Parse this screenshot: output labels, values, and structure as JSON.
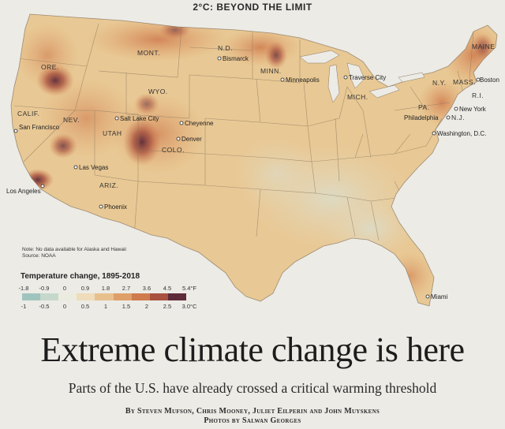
{
  "kicker": "2°C: BEYOND THE LIMIT",
  "map": {
    "states": [
      {
        "id": "ore",
        "label": "ORE."
      },
      {
        "id": "calif",
        "label": "CALIF."
      },
      {
        "id": "nev",
        "label": "NEV."
      },
      {
        "id": "utah",
        "label": "UTAH"
      },
      {
        "id": "ariz",
        "label": "ARIZ."
      },
      {
        "id": "mont",
        "label": "MONT."
      },
      {
        "id": "wyo",
        "label": "WYO."
      },
      {
        "id": "colo",
        "label": "COLO."
      },
      {
        "id": "nd",
        "label": "N.D."
      },
      {
        "id": "minn",
        "label": "MINN."
      },
      {
        "id": "mich",
        "label": "MICH."
      },
      {
        "id": "pa",
        "label": "PA."
      },
      {
        "id": "ny",
        "label": "N.Y."
      },
      {
        "id": "mass",
        "label": "MASS."
      },
      {
        "id": "ri",
        "label": "R.I."
      },
      {
        "id": "nj",
        "label": "N.J."
      },
      {
        "id": "maine",
        "label": "MAINE"
      }
    ],
    "cities": [
      {
        "id": "san-francisco",
        "label": "San Francisco"
      },
      {
        "id": "los-angeles",
        "label": "Los Angeles"
      },
      {
        "id": "las-vegas",
        "label": "Las Vegas"
      },
      {
        "id": "phoenix",
        "label": "Phoenix"
      },
      {
        "id": "salt-lake-city",
        "label": "Salt Lake City"
      },
      {
        "id": "cheyenne",
        "label": "Cheyenne"
      },
      {
        "id": "denver",
        "label": "Denver"
      },
      {
        "id": "bismarck",
        "label": "Bismarck"
      },
      {
        "id": "minneapolis",
        "label": "Minneapolis"
      },
      {
        "id": "traverse-city",
        "label": "Traverse City"
      },
      {
        "id": "boston",
        "label": "Boston"
      },
      {
        "id": "new-york",
        "label": "New York"
      },
      {
        "id": "philadelphia",
        "label": "Philadelphia"
      },
      {
        "id": "washington-dc",
        "label": "Washington, D.C."
      },
      {
        "id": "miami",
        "label": "Miami"
      }
    ],
    "note_line1": "Note: No data available for Alaska and Hawaii",
    "note_line2": "Source: NOAA"
  },
  "legend": {
    "title": "Temperature change, 1895-2018",
    "fahrenheit_ticks": [
      "-1.8",
      "-0.9",
      "0",
      "0.9",
      "1.8",
      "2.7",
      "3.6",
      "4.5",
      "5.4°F"
    ],
    "celsius_ticks": [
      "-1",
      "-0.5",
      "0",
      "0.5",
      "1",
      "1.5",
      "2",
      "2.5",
      "3.0°C"
    ],
    "colors": [
      "#9fc4be",
      "#c6d8cc",
      "#ecebe0",
      "#efdcba",
      "#e8c08e",
      "#df9f68",
      "#cf7b4e",
      "#a8513e",
      "#5e2b3a"
    ]
  },
  "headline": "Extreme climate change is here",
  "subhead": "Parts of the U.S. have already crossed a critical warming threshold",
  "byline_line1": "By Steven Mufson, Chris Mooney, Juliet Eilperin and John Muyskens",
  "byline_line2": "Photos by Salwan Georges"
}
